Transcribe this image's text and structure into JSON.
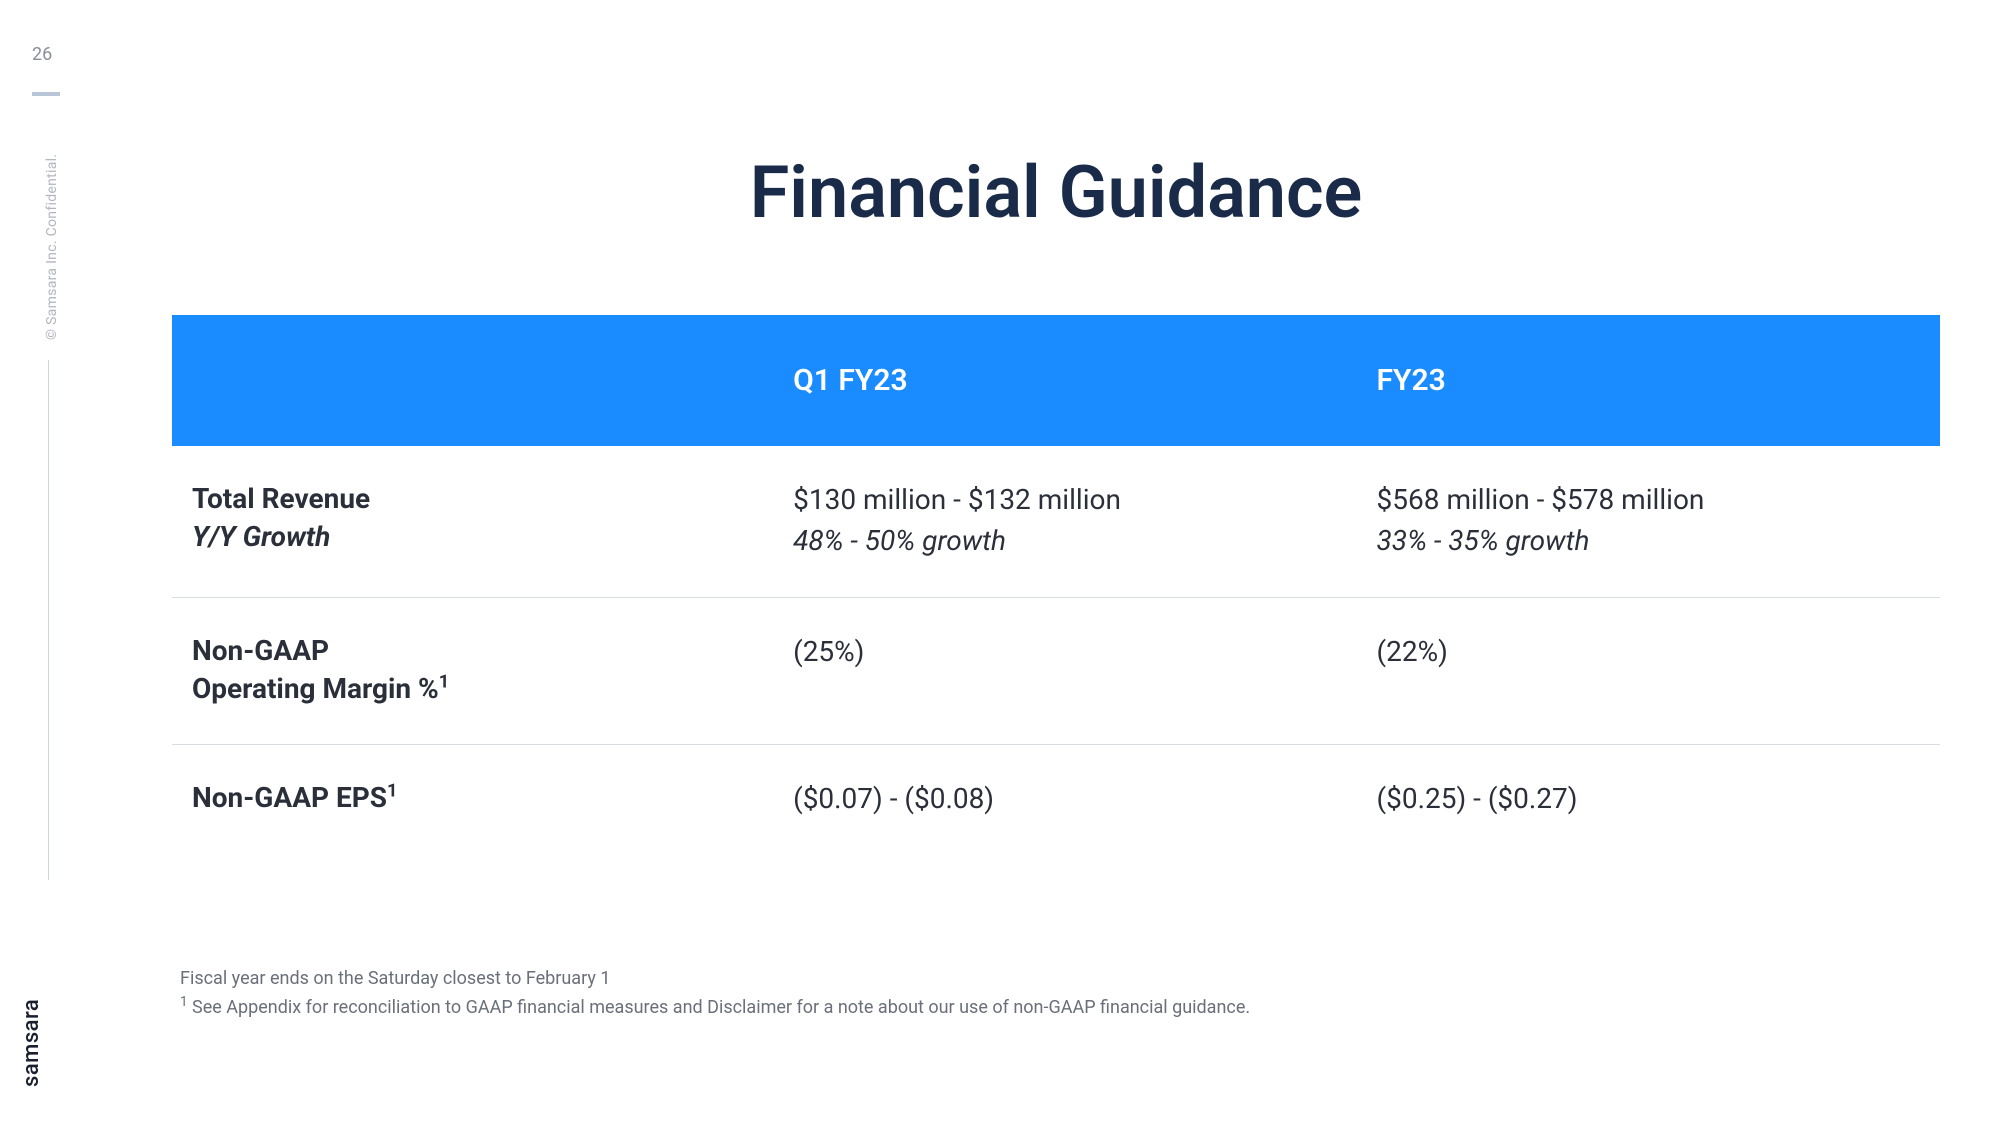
{
  "page_number": "26",
  "confidential_text": "© Samsara Inc. Confidential.",
  "brand": "samsara",
  "title": "Financial Guidance",
  "colors": {
    "header_bg": "#1a8cff",
    "header_text": "#ffffff",
    "title_color": "#1a2b4a",
    "body_text": "#2a2f3a",
    "label_text": "#1a2b4a",
    "border_color": "#d8dce3",
    "footnote_color": "#6a6f7a",
    "accent_bar": "#b8c5d6"
  },
  "table": {
    "columns": [
      {
        "label": ""
      },
      {
        "label": "Q1 FY23"
      },
      {
        "label": "FY23"
      }
    ],
    "rows": [
      {
        "label_main": "Total Revenue",
        "label_sub": "Y/Y Growth",
        "q1_main": "$130 million - $132 million",
        "q1_sub": "48% - 50% growth",
        "fy_main": "$568 million - $578 million",
        "fy_sub": "33% - 35% growth"
      },
      {
        "label_main": "Non-GAAP",
        "label_sub_plain": "Operating Margin %",
        "label_sup": "1",
        "q1_main": "(25%)",
        "fy_main": "(22%)"
      },
      {
        "label_main": "Non-GAAP EPS",
        "label_sup": "1",
        "q1_main": "($0.07) - ($0.08)",
        "fy_main": "($0.25) - ($0.27)"
      }
    ]
  },
  "footnotes": {
    "line1": "Fiscal year ends on the Saturday closest to February 1",
    "line2_sup": "1",
    "line2": " See Appendix for reconciliation to GAAP financial measures and Disclaimer for a note about our use of non-GAAP financial guidance."
  }
}
